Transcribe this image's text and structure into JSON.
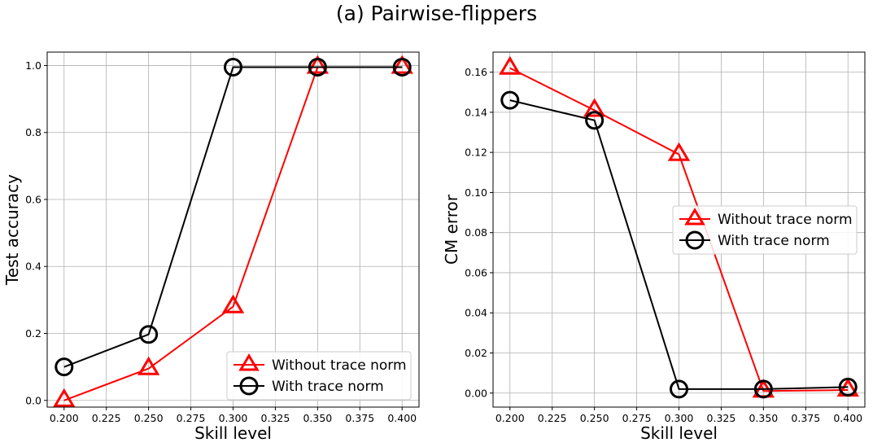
{
  "figure": {
    "title": "(a) Pairwise-flippers"
  },
  "chart_data": [
    {
      "type": "line",
      "xlabel": "Skill level",
      "ylabel": "Test accuracy",
      "xlim": [
        0.19,
        0.41
      ],
      "ylim": [
        -0.02,
        1.04
      ],
      "xticks": [
        0.2,
        0.225,
        0.25,
        0.275,
        0.3,
        0.325,
        0.35,
        0.375,
        0.4
      ],
      "xtick_labels": [
        "0.200",
        "0.225",
        "0.250",
        "0.275",
        "0.300",
        "0.325",
        "0.350",
        "0.375",
        "0.400"
      ],
      "yticks": [
        0.0,
        0.2,
        0.4,
        0.6,
        0.8,
        1.0
      ],
      "ytick_labels": [
        "0.0",
        "0.2",
        "0.4",
        "0.6",
        "0.8",
        "1.0"
      ],
      "grid": true,
      "legend_position": "lower-right",
      "series": [
        {
          "name": "Without trace norm",
          "color": "#ff0000",
          "marker": "triangle",
          "x": [
            0.2,
            0.25,
            0.3,
            0.35,
            0.4
          ],
          "y": [
            0.0,
            0.095,
            0.28,
            0.995,
            0.995
          ]
        },
        {
          "name": "With trace norm",
          "color": "#000000",
          "marker": "circle",
          "x": [
            0.2,
            0.25,
            0.3,
            0.35,
            0.4
          ],
          "y": [
            0.1,
            0.197,
            0.995,
            0.995,
            0.995
          ]
        }
      ]
    },
    {
      "type": "line",
      "xlabel": "Skill level",
      "ylabel": "CM error",
      "xlim": [
        0.19,
        0.41
      ],
      "ylim": [
        -0.007,
        0.17
      ],
      "xticks": [
        0.2,
        0.225,
        0.25,
        0.275,
        0.3,
        0.325,
        0.35,
        0.375,
        0.4
      ],
      "xtick_labels": [
        "0.200",
        "0.225",
        "0.250",
        "0.275",
        "0.300",
        "0.325",
        "0.350",
        "0.375",
        "0.400"
      ],
      "yticks": [
        0.0,
        0.02,
        0.04,
        0.06,
        0.08,
        0.1,
        0.12,
        0.14,
        0.16
      ],
      "ytick_labels": [
        "0.00",
        "0.02",
        "0.04",
        "0.06",
        "0.08",
        "0.10",
        "0.12",
        "0.14",
        "0.16"
      ],
      "grid": true,
      "legend_position": "center-right",
      "series": [
        {
          "name": "Without trace norm",
          "color": "#ff0000",
          "marker": "triangle",
          "x": [
            0.2,
            0.25,
            0.3,
            0.35,
            0.4
          ],
          "y": [
            0.162,
            0.141,
            0.119,
            0.001,
            0.0015
          ]
        },
        {
          "name": "With trace norm",
          "color": "#000000",
          "marker": "circle",
          "x": [
            0.2,
            0.25,
            0.3,
            0.35,
            0.4
          ],
          "y": [
            0.146,
            0.136,
            0.002,
            0.002,
            0.003
          ]
        }
      ]
    }
  ]
}
